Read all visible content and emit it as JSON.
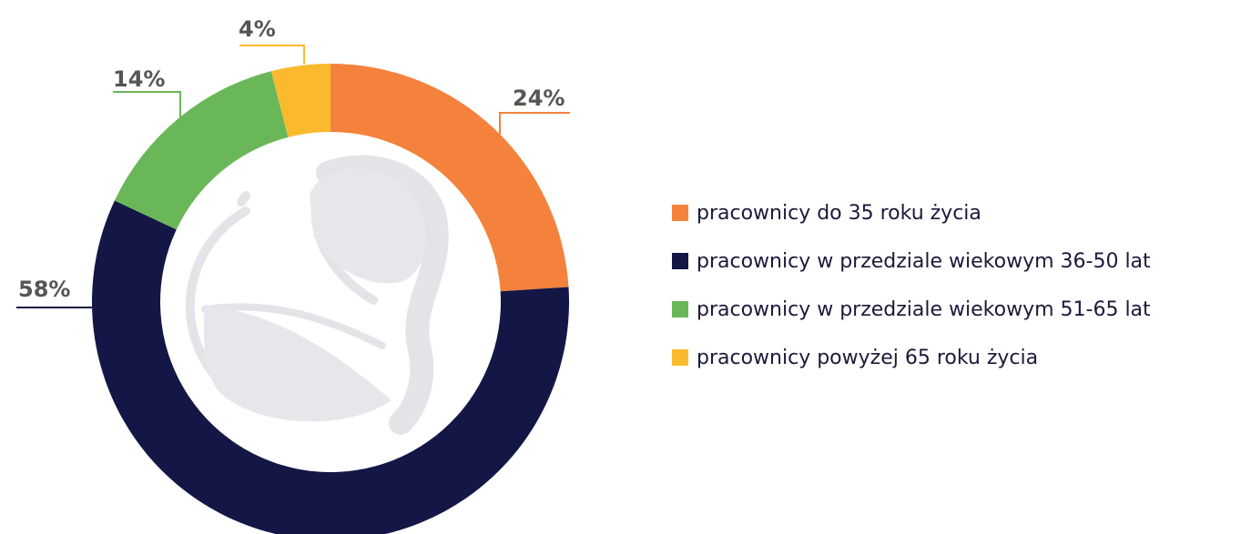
{
  "chart_data": {
    "type": "pie",
    "donut": true,
    "title": "",
    "slices": [
      {
        "label": "pracownicy do 35 roku życia",
        "value": 24,
        "value_label": "24%",
        "color": "#F4823C"
      },
      {
        "label": "pracownicy w przedziale wiekowym 36-50 lat",
        "value": 58,
        "value_label": "58%",
        "color": "#141646"
      },
      {
        "label": "pracownicy w przedziale wiekowym 51-65 lat",
        "value": 14,
        "value_label": "14%",
        "color": "#6AB759"
      },
      {
        "label": "pracownicy powyżej 65 roku życia",
        "value": 4,
        "value_label": "4%",
        "color": "#FBBA2E"
      }
    ],
    "legend_position": "right",
    "center_icon": "logo-watermark-icon"
  }
}
